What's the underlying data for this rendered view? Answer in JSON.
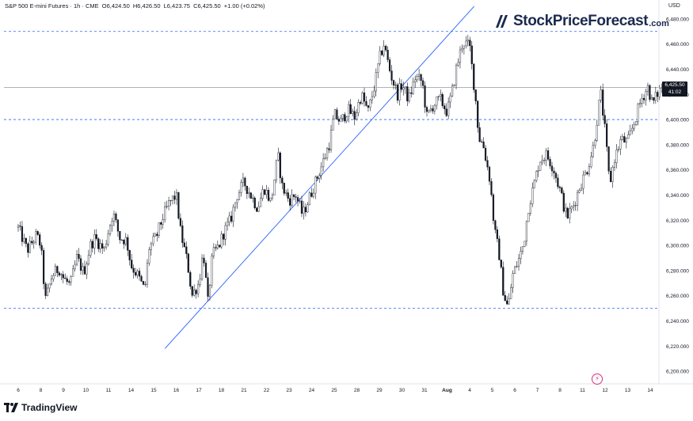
{
  "header": {
    "symbol": "S&P 500 E-mini Futures · 1h · CME",
    "open": "O6,424.50",
    "high": "H6,426.50",
    "low": "L6,423.75",
    "close": "C6,425.50",
    "change": "+1.00 (+0.02%)"
  },
  "brand": {
    "name": "StockPriceForecast",
    "domain": ".com"
  },
  "footer": {
    "tradingview": "TradingView"
  },
  "price_axis": {
    "currency": "USD"
  },
  "last_price": {
    "value": "6,425.50",
    "countdown": "41:02"
  },
  "colors": {
    "candles": "#131722",
    "dashed_levels": "#2962ff",
    "trendline": "#2962ff",
    "last_price_line": "#9598a1"
  },
  "chart_data": {
    "type": "candlestick",
    "title": "S&P 500 E-mini Futures · 1h · CME",
    "ylim": [
      6190,
      6495
    ],
    "y_ticks": [
      6200,
      6220,
      6240,
      6260,
      6280,
      6300,
      6320,
      6340,
      6360,
      6380,
      6400,
      6420,
      6440,
      6460,
      6480
    ],
    "x_tick_labels": [
      "6",
      "8",
      "9",
      "10",
      "11",
      "14",
      "15",
      "16",
      "17",
      "18",
      "21",
      "22",
      "23",
      "24",
      "25",
      "28",
      "29",
      "30",
      "31",
      "Aug",
      "4",
      "5",
      "6",
      "7",
      "8",
      "11",
      "12",
      "13",
      "14"
    ],
    "horizontal_levels": [
      6470,
      6400,
      6250
    ],
    "last_price": 6425.5,
    "trendline": {
      "from": {
        "day_index": 6.5,
        "price": 6218
      },
      "to": {
        "day_index": 20.2,
        "price": 6490
      }
    },
    "series_path": [
      {
        "t": 0.0,
        "p": 6314
      },
      {
        "t": 0.4,
        "p": 6296
      },
      {
        "t": 0.8,
        "p": 6308
      },
      {
        "t": 1.0,
        "p": 6300
      },
      {
        "t": 1.2,
        "p": 6256
      },
      {
        "t": 1.5,
        "p": 6276
      },
      {
        "t": 1.8,
        "p": 6282
      },
      {
        "t": 2.0,
        "p": 6274
      },
      {
        "t": 2.3,
        "p": 6268
      },
      {
        "t": 2.6,
        "p": 6290
      },
      {
        "t": 2.9,
        "p": 6278
      },
      {
        "t": 3.2,
        "p": 6300
      },
      {
        "t": 3.4,
        "p": 6306
      },
      {
        "t": 3.8,
        "p": 6296
      },
      {
        "t": 4.0,
        "p": 6312
      },
      {
        "t": 4.2,
        "p": 6326
      },
      {
        "t": 4.5,
        "p": 6306
      },
      {
        "t": 4.8,
        "p": 6304
      },
      {
        "t": 5.0,
        "p": 6284
      },
      {
        "t": 5.3,
        "p": 6276
      },
      {
        "t": 5.6,
        "p": 6264
      },
      {
        "t": 5.8,
        "p": 6298
      },
      {
        "t": 6.1,
        "p": 6306
      },
      {
        "t": 6.4,
        "p": 6322
      },
      {
        "t": 6.7,
        "p": 6334
      },
      {
        "t": 7.0,
        "p": 6340
      },
      {
        "t": 7.2,
        "p": 6310
      },
      {
        "t": 7.5,
        "p": 6286
      },
      {
        "t": 7.7,
        "p": 6260
      },
      {
        "t": 8.0,
        "p": 6270
      },
      {
        "t": 8.2,
        "p": 6296
      },
      {
        "t": 8.4,
        "p": 6254
      },
      {
        "t": 8.6,
        "p": 6292
      },
      {
        "t": 8.9,
        "p": 6300
      },
      {
        "t": 9.1,
        "p": 6310
      },
      {
        "t": 9.4,
        "p": 6320
      },
      {
        "t": 9.7,
        "p": 6340
      },
      {
        "t": 10.0,
        "p": 6350
      },
      {
        "t": 10.3,
        "p": 6340
      },
      {
        "t": 10.6,
        "p": 6330
      },
      {
        "t": 10.9,
        "p": 6346
      },
      {
        "t": 11.2,
        "p": 6334
      },
      {
        "t": 11.5,
        "p": 6372
      },
      {
        "t": 11.7,
        "p": 6346
      },
      {
        "t": 12.0,
        "p": 6336
      },
      {
        "t": 12.3,
        "p": 6340
      },
      {
        "t": 12.6,
        "p": 6324
      },
      {
        "t": 12.9,
        "p": 6338
      },
      {
        "t": 13.2,
        "p": 6352
      },
      {
        "t": 13.5,
        "p": 6366
      },
      {
        "t": 13.8,
        "p": 6382
      },
      {
        "t": 14.0,
        "p": 6404
      },
      {
        "t": 14.3,
        "p": 6398
      },
      {
        "t": 14.6,
        "p": 6408
      },
      {
        "t": 14.9,
        "p": 6402
      },
      {
        "t": 15.2,
        "p": 6420
      },
      {
        "t": 15.5,
        "p": 6406
      },
      {
        "t": 15.8,
        "p": 6428
      },
      {
        "t": 16.0,
        "p": 6448
      },
      {
        "t": 16.2,
        "p": 6460
      },
      {
        "t": 16.5,
        "p": 6436
      },
      {
        "t": 16.8,
        "p": 6420
      },
      {
        "t": 17.0,
        "p": 6428
      },
      {
        "t": 17.3,
        "p": 6416
      },
      {
        "t": 17.6,
        "p": 6434
      },
      {
        "t": 17.9,
        "p": 6430
      },
      {
        "t": 18.1,
        "p": 6402
      },
      {
        "t": 18.4,
        "p": 6412
      },
      {
        "t": 18.7,
        "p": 6416
      },
      {
        "t": 19.0,
        "p": 6406
      },
      {
        "t": 19.2,
        "p": 6420
      },
      {
        "t": 19.4,
        "p": 6440
      },
      {
        "t": 19.7,
        "p": 6462
      },
      {
        "t": 20.0,
        "p": 6458
      },
      {
        "t": 20.3,
        "p": 6410
      },
      {
        "t": 20.4,
        "p": 6386
      },
      {
        "t": 20.6,
        "p": 6380
      },
      {
        "t": 20.9,
        "p": 6352
      },
      {
        "t": 21.1,
        "p": 6312
      },
      {
        "t": 21.3,
        "p": 6294
      },
      {
        "t": 21.5,
        "p": 6262
      },
      {
        "t": 21.7,
        "p": 6250
      },
      {
        "t": 21.9,
        "p": 6276
      },
      {
        "t": 22.2,
        "p": 6290
      },
      {
        "t": 22.4,
        "p": 6302
      },
      {
        "t": 22.6,
        "p": 6330
      },
      {
        "t": 22.9,
        "p": 6352
      },
      {
        "t": 23.1,
        "p": 6368
      },
      {
        "t": 23.4,
        "p": 6372
      },
      {
        "t": 23.7,
        "p": 6362
      },
      {
        "t": 24.0,
        "p": 6344
      },
      {
        "t": 24.3,
        "p": 6322
      },
      {
        "t": 24.6,
        "p": 6332
      },
      {
        "t": 24.9,
        "p": 6348
      },
      {
        "t": 25.2,
        "p": 6360
      },
      {
        "t": 25.5,
        "p": 6380
      },
      {
        "t": 25.8,
        "p": 6422
      },
      {
        "t": 26.0,
        "p": 6390
      },
      {
        "t": 26.2,
        "p": 6348
      },
      {
        "t": 26.4,
        "p": 6368
      },
      {
        "t": 26.7,
        "p": 6384
      },
      {
        "t": 27.0,
        "p": 6382
      },
      {
        "t": 27.3,
        "p": 6398
      },
      {
        "t": 27.6,
        "p": 6416
      },
      {
        "t": 27.9,
        "p": 6426
      },
      {
        "t": 28.1,
        "p": 6412
      },
      {
        "t": 28.3,
        "p": 6420
      },
      {
        "t": 28.5,
        "p": 6425.5
      }
    ]
  }
}
